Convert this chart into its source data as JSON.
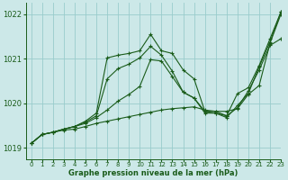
{
  "background_color": "#cce8e8",
  "grid_color": "#99cccc",
  "line_color": "#1a5c1a",
  "xlabel": "Graphe pression niveau de la mer (hPa)",
  "xlim": [
    -0.5,
    23
  ],
  "ylim": [
    1018.75,
    1022.25
  ],
  "yticks": [
    1019,
    1020,
    1021,
    1022
  ],
  "xticks": [
    0,
    1,
    2,
    3,
    4,
    5,
    6,
    7,
    8,
    9,
    10,
    11,
    12,
    13,
    14,
    15,
    16,
    17,
    18,
    19,
    20,
    21,
    22,
    23
  ],
  "series": [
    {
      "x": [
        0,
        1,
        2,
        3,
        4,
        5,
        6,
        7,
        8,
        9,
        10,
        11,
        12,
        13,
        14,
        15,
        16,
        17,
        18,
        19,
        20,
        21,
        22,
        23
      ],
      "y": [
        1019.1,
        1019.3,
        1019.35,
        1019.4,
        1019.42,
        1019.48,
        1019.55,
        1019.6,
        1019.65,
        1019.7,
        1019.75,
        1019.8,
        1019.85,
        1019.88,
        1019.9,
        1019.92,
        1019.85,
        1019.82,
        1019.82,
        1019.88,
        1020.2,
        1020.4,
        1021.35,
        1022.0
      ]
    },
    {
      "x": [
        0,
        1,
        2,
        3,
        4,
        5,
        6,
        7,
        8,
        9,
        10,
        11,
        12,
        13,
        14,
        15,
        16,
        17,
        18,
        19,
        20,
        21,
        22,
        23
      ],
      "y": [
        1019.1,
        1019.3,
        1019.35,
        1019.42,
        1019.48,
        1019.55,
        1019.68,
        1019.85,
        1020.05,
        1020.2,
        1020.38,
        1020.98,
        1020.95,
        1020.6,
        1020.25,
        1020.12,
        1019.82,
        1019.78,
        1019.72,
        1019.9,
        1020.28,
        1020.75,
        1021.3,
        1021.45
      ]
    },
    {
      "x": [
        0,
        1,
        2,
        3,
        4,
        5,
        6,
        7,
        8,
        9,
        10,
        11,
        12,
        13,
        14,
        15,
        16,
        17,
        18,
        19,
        20,
        21,
        22,
        23
      ],
      "y": [
        1019.1,
        1019.3,
        1019.35,
        1019.42,
        1019.48,
        1019.58,
        1019.72,
        1020.55,
        1020.78,
        1020.88,
        1021.02,
        1021.28,
        1021.08,
        1020.72,
        1020.25,
        1020.12,
        1019.78,
        1019.78,
        1019.68,
        1019.95,
        1020.22,
        1020.82,
        1021.38,
        1022.05
      ]
    },
    {
      "x": [
        0,
        1,
        2,
        3,
        4,
        5,
        6,
        7,
        8,
        9,
        10,
        11,
        12,
        13,
        14,
        15,
        16,
        17,
        18,
        19,
        20,
        21,
        22,
        23
      ],
      "y": [
        1019.1,
        1019.3,
        1019.35,
        1019.42,
        1019.48,
        1019.6,
        1019.78,
        1021.02,
        1021.08,
        1021.12,
        1021.18,
        1021.55,
        1021.18,
        1021.12,
        1020.75,
        1020.55,
        1019.82,
        1019.82,
        1019.72,
        1020.22,
        1020.35,
        1020.85,
        1021.45,
        1022.05
      ]
    }
  ]
}
